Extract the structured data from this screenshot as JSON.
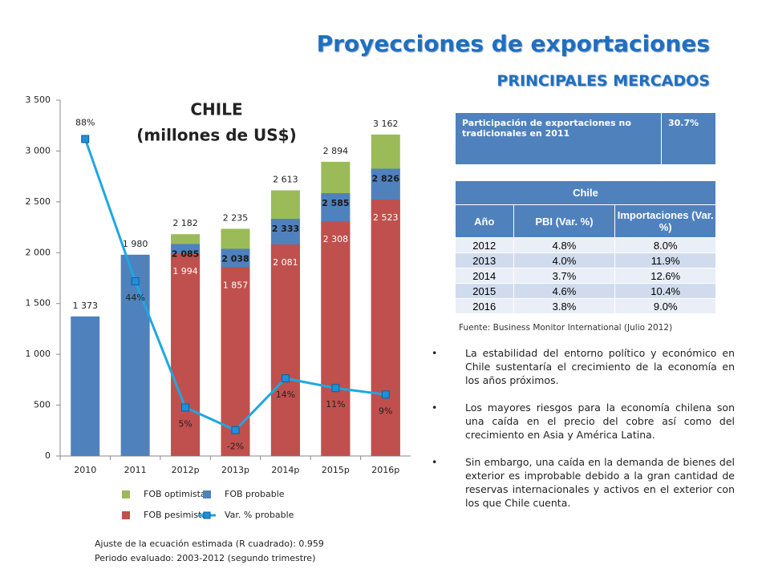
{
  "header": {
    "title": "Proyecciones de exportaciones",
    "subtitle": "PRINCIPALES MERCADOS"
  },
  "chart_data": {
    "type": "bar",
    "title": "CHILE",
    "subtitle": "(millones de US$)",
    "categories": [
      "2010",
      "2011",
      "2012p",
      "2013p",
      "2014p",
      "2015p",
      "2016p"
    ],
    "ylim": [
      0,
      3500
    ],
    "yticks": [
      0,
      500,
      {
        "value": 1000,
        "label": "1 000"
      },
      {
        "value": 1500,
        "label": "1 500"
      },
      {
        "value": 2000,
        "label": "2 000"
      },
      {
        "value": 2500,
        "label": "2 500"
      },
      {
        "value": 3000,
        "label": "3 000"
      },
      {
        "value": 3500,
        "label": "3 500"
      }
    ],
    "y2lim": [
      -10,
      100
    ],
    "legend": "bottom",
    "series": [
      {
        "name": "FOB optimista",
        "color": "#9bbb59",
        "values": [
          null,
          null,
          2182,
          2235,
          2613,
          2894,
          3162
        ],
        "value_labels": [
          null,
          null,
          "2 182",
          "2 235",
          "2 613",
          "2 894",
          "3 162"
        ]
      },
      {
        "name": "FOB probable",
        "color": "#4f81bd",
        "values": [
          1373,
          1980,
          2085,
          2038,
          2333,
          2585,
          2826
        ],
        "value_labels": [
          "1 373",
          "1 980",
          "2 085",
          "2 038",
          "2 333",
          "2 585",
          "2 826"
        ]
      },
      {
        "name": "FOB pesimista",
        "color": "#c0504d",
        "values": [
          null,
          null,
          1994,
          1857,
          2081,
          2308,
          2523
        ],
        "value_labels": [
          null,
          null,
          "1 994",
          "1 857",
          "2 081",
          "2 308",
          "2 523"
        ]
      },
      {
        "name": "Var. % probable",
        "color": "#1ea7e1",
        "type": "line",
        "axis": "y2",
        "values": [
          88,
          44,
          5,
          -2,
          14,
          11,
          9
        ],
        "value_labels": [
          "88%",
          "44%",
          "5%",
          "-2%",
          "14%",
          "11%",
          "9%"
        ]
      }
    ]
  },
  "footnotes": [
    "Ajuste de la ecuación estimada (R cuadrado): 0.959",
    "Periodo evaluado: 2003-2012  (segundo trimestre)"
  ],
  "note_table": {
    "rows": [
      [
        "Participación de exportaciones no tradicionales en 2011",
        "30.7%"
      ]
    ]
  },
  "table": {
    "title": "Chile",
    "columns": [
      "Año",
      "PBI (Var. %)",
      "Importaciones (Var. %)"
    ],
    "rows": [
      [
        "2012",
        "4.8%",
        "8.0%"
      ],
      [
        "2013",
        "4.0%",
        "11.9%"
      ],
      [
        "2014",
        "3.7%",
        "12.6%"
      ],
      [
        "2015",
        "4.6%",
        "10.4%"
      ],
      [
        "2016",
        "3.8%",
        "9.0%"
      ]
    ]
  },
  "source": "Fuente: Business Monitor International (Julio 2012)",
  "bullets": [
    "La estabilidad del entorno político y económico en Chile sustentaría el crecimiento de la economía en los años próximos.",
    "Los mayores riesgos para la economía chilena son una caída en el precio del cobre así como del crecimiento en Asia y América Latina.",
    "Sin embargo, una caída en la demanda de bienes del exterior es improbable debido a la gran cantidad de reservas internacionales y activos en el exterior con los que Chile cuenta."
  ]
}
